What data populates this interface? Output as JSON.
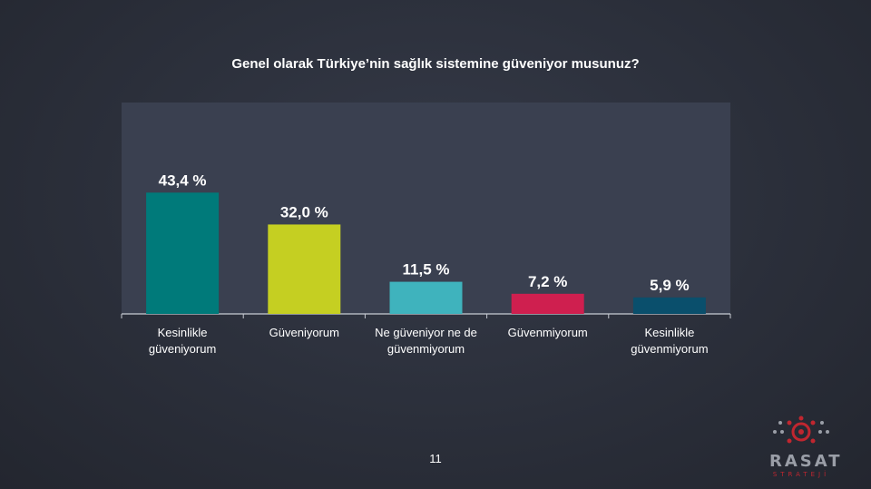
{
  "page_number": "11",
  "logo": {
    "word": "RASAT",
    "sub": "STRATEJİ"
  },
  "colors": {
    "plot_background": "#3a4050",
    "axis": "#c8ccd4",
    "logo_red": "#c0262f",
    "logo_gray": "#9a9ea7"
  },
  "chart_data": {
    "type": "bar",
    "title": "Genel olarak Türkiye’nin sağlık sistemine güveniyor musunuz?",
    "xlabel": "",
    "ylabel": "",
    "categories": [
      [
        "Kesinlikle",
        "güveniyorum"
      ],
      [
        "Güveniyorum"
      ],
      [
        "Ne güveniyor ne de",
        "güvenmiyorum"
      ],
      [
        "Güvenmiyorum"
      ],
      [
        "Kesinlikle",
        "güvenmiyorum"
      ]
    ],
    "values": [
      43.4,
      32.0,
      11.5,
      7.2,
      5.9
    ],
    "value_labels": [
      "43,4 %",
      "32,0 %",
      "11,5 %",
      "7,2 %",
      "5,9 %"
    ],
    "bar_colors": [
      "#007a7a",
      "#c5cf22",
      "#3fb3bd",
      "#cf1f4f",
      "#0a4f6c"
    ],
    "ylim": [
      0,
      50
    ],
    "grid": false,
    "legend": "none"
  }
}
